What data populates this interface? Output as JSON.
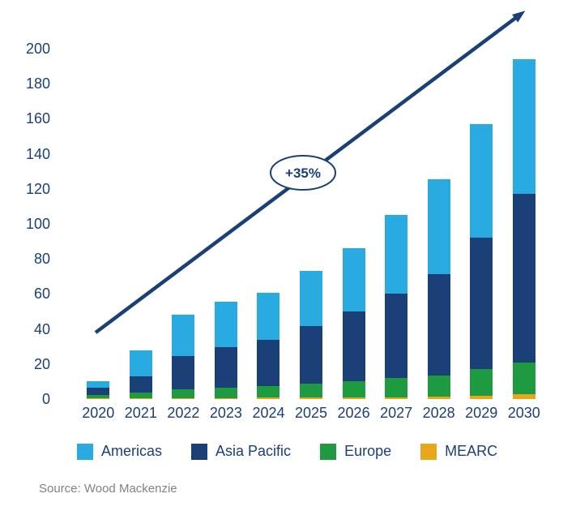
{
  "chart_data": {
    "type": "bar",
    "stacked": true,
    "categories": [
      "2020",
      "2021",
      "2022",
      "2023",
      "2024",
      "2025",
      "2026",
      "2027",
      "2028",
      "2029",
      "2030"
    ],
    "series": [
      {
        "name": "MEARC",
        "color": "#E8A71B",
        "values": [
          0.5,
          0.5,
          0.6,
          0.7,
          0.8,
          0.8,
          1,
          1,
          1.5,
          2,
          3
        ]
      },
      {
        "name": "Europe",
        "color": "#1E9A40",
        "values": [
          2,
          3,
          5,
          6,
          6.5,
          8,
          9,
          11,
          12,
          15,
          18
        ]
      },
      {
        "name": "Asia Pacific",
        "color": "#1B3F77",
        "values": [
          4,
          9.5,
          19,
          23,
          26.5,
          33,
          40,
          48,
          58,
          75,
          96
        ]
      },
      {
        "name": "Americas",
        "color": "#29ABE2",
        "values": [
          3.5,
          15,
          23.5,
          26,
          27,
          31.5,
          36,
          45,
          54,
          65,
          77
        ]
      }
    ],
    "totals": [
      10,
      28,
      48,
      56,
      61,
      73,
      86,
      105,
      125.5,
      157,
      194
    ],
    "legend": [
      {
        "label": "Americas",
        "color": "#29ABE2"
      },
      {
        "label": "Asia Pacific",
        "color": "#1B3F77"
      },
      {
        "label": "Europe",
        "color": "#1E9A40"
      },
      {
        "label": "MEARC",
        "color": "#E8A71B"
      }
    ],
    "ylim": [
      0,
      200
    ],
    "y_ticks": [
      0,
      20,
      40,
      60,
      80,
      100,
      120,
      140,
      160,
      180,
      200
    ],
    "grid": false,
    "legend_position": "bottom",
    "annotation": {
      "label": "+35%"
    }
  },
  "footer": {
    "source": "Source: Wood Mackenzie"
  }
}
